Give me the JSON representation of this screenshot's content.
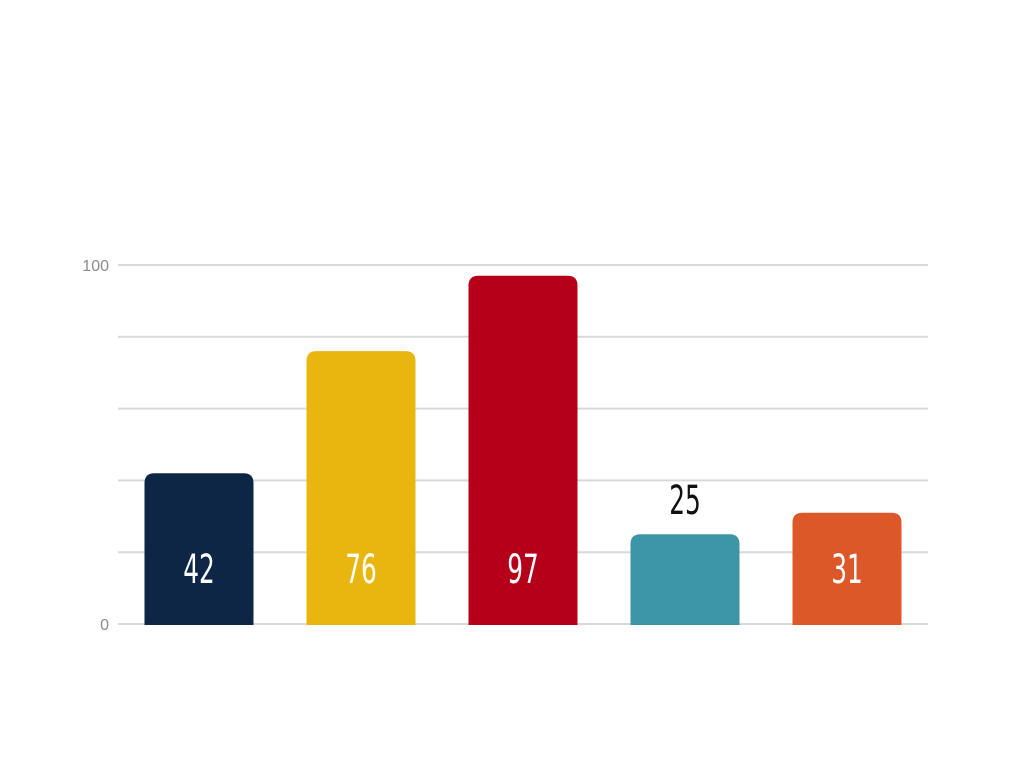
{
  "chart_data": {
    "type": "bar",
    "categories": [
      "",
      "",
      "",
      "",
      ""
    ],
    "values": [
      42,
      76,
      97,
      25,
      31
    ],
    "colors": [
      "#0e2646",
      "#e8b60f",
      "#b60019",
      "#3d95a8",
      "#dc5829"
    ],
    "ylim": [
      0,
      100
    ],
    "y_tick_labels": [
      "100",
      "0"
    ],
    "gridlines": [
      0,
      20,
      40,
      60,
      80,
      100
    ],
    "grid": true,
    "legend": "none",
    "title": "",
    "xlabel": "",
    "ylabel": "",
    "data_labels": [
      "42",
      "76",
      "97",
      "25",
      "31"
    ]
  }
}
